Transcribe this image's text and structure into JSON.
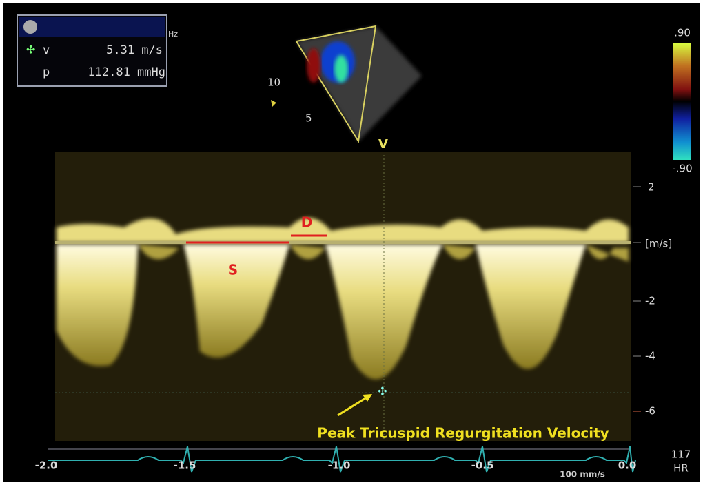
{
  "info_box": {
    "velocity_label": "v",
    "velocity": "5.31 m/s",
    "pressure_label": "p",
    "pressure": "112.81 mmHg",
    "hz": "Hz"
  },
  "color_scale": {
    "max": ".90",
    "min": "-.90"
  },
  "sector": {
    "depth_labels": [
      "10",
      "5"
    ]
  },
  "cursor_label": "V",
  "spectrum": {
    "y_ticks": [
      "2",
      "[m/s]",
      "-2",
      "-4",
      "-6"
    ],
    "labels": {
      "s_wave": "S",
      "d_wave": "D"
    },
    "annotation": "Peak Tricuspid Regurgitation Velocity"
  },
  "time_axis": {
    "ticks": [
      "-2.0",
      "-1.5",
      "-1.0",
      "-0.5",
      "0.0"
    ],
    "sweep_speed": "100 mm/s"
  },
  "heart_rate": {
    "value": "117",
    "label": "HR"
  }
}
